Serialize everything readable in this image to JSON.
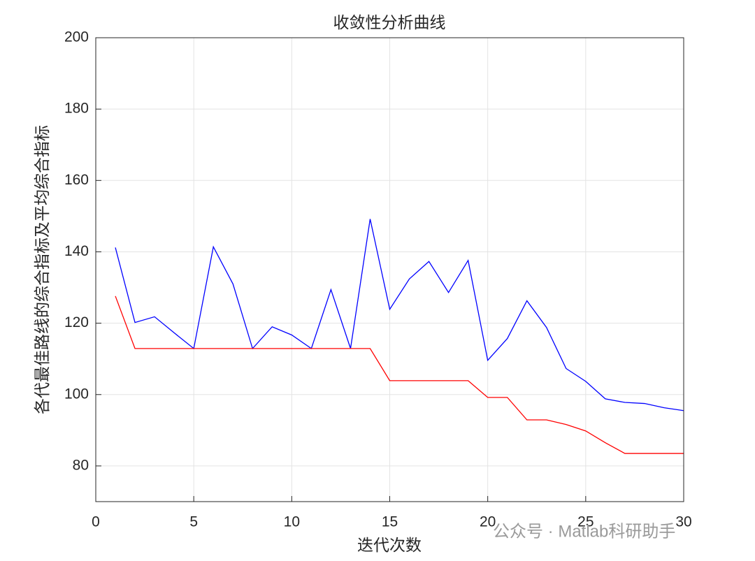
{
  "chart_data": {
    "type": "line",
    "title": "收敛性分析曲线",
    "xlabel": "迭代次数",
    "ylabel": "各代最佳路线的综合指标及平均综合指标",
    "watermark": "公众号 · Matlab科研助手",
    "x": [
      1,
      2,
      3,
      4,
      5,
      6,
      7,
      8,
      9,
      10,
      11,
      12,
      13,
      14,
      15,
      16,
      17,
      18,
      19,
      20,
      21,
      22,
      23,
      24,
      25,
      26,
      27,
      28,
      29,
      30
    ],
    "series": [
      {
        "color": "#0000ff",
        "values": [
          141.2,
          120.2,
          121.8,
          117.3,
          112.9,
          141.4,
          131.0,
          112.9,
          119.0,
          116.7,
          112.9,
          129.4,
          112.9,
          149.2,
          123.9,
          132.4,
          137.3,
          128.6,
          137.6,
          109.6,
          115.7,
          126.3,
          118.8,
          107.3,
          103.7,
          98.8,
          97.8,
          97.5,
          96.3,
          95.5
        ]
      },
      {
        "color": "#ff0000",
        "values": [
          127.6,
          112.9,
          112.9,
          112.9,
          112.9,
          112.9,
          112.9,
          112.9,
          112.9,
          112.9,
          112.9,
          112.9,
          112.9,
          112.9,
          103.9,
          103.9,
          103.9,
          103.9,
          103.9,
          99.2,
          99.2,
          92.9,
          92.9,
          91.6,
          89.8,
          86.5,
          83.5,
          83.5,
          83.5,
          83.5
        ]
      }
    ],
    "xlim": [
      0,
      30
    ],
    "xticks": [
      0,
      5,
      10,
      15,
      20,
      25,
      30
    ],
    "ylim": [
      70,
      200
    ],
    "yticks": [
      80,
      100,
      120,
      140,
      160,
      180,
      200
    ],
    "grid": true
  }
}
